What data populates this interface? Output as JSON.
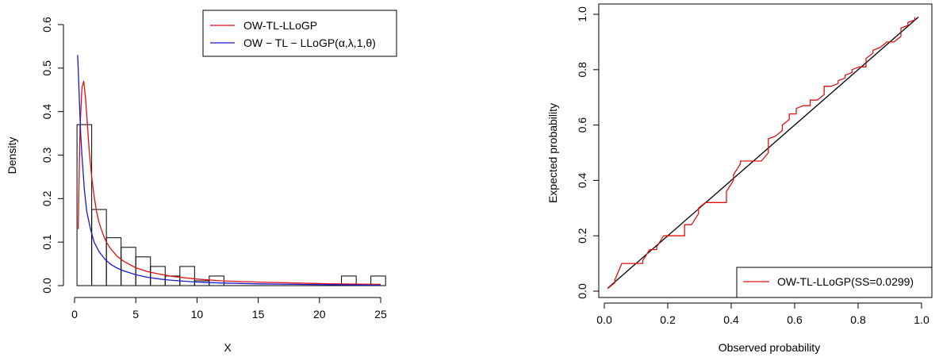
{
  "chart_data": [
    {
      "type": "histogram",
      "xlabel": "X",
      "ylabel": "Density",
      "xlim": [
        0,
        25
      ],
      "ylim": [
        0,
        0.6
      ],
      "xticks": [
        "0",
        "5",
        "10",
        "15",
        "20",
        "25"
      ],
      "yticks": [
        "0.0",
        "0.1",
        "0.2",
        "0.3",
        "0.4",
        "0.5",
        "0.6"
      ],
      "grid": false,
      "legend_position": "top-right",
      "histogram": {
        "bin_width": 1.2,
        "bins": [
          {
            "x0": 0.2,
            "x1": 1.4,
            "density": 0.37
          },
          {
            "x0": 1.4,
            "x1": 2.6,
            "density": 0.175
          },
          {
            "x0": 2.6,
            "x1": 3.8,
            "density": 0.11
          },
          {
            "x0": 3.8,
            "x1": 5.0,
            "density": 0.088
          },
          {
            "x0": 5.0,
            "x1": 6.2,
            "density": 0.066
          },
          {
            "x0": 6.2,
            "x1": 7.4,
            "density": 0.044
          },
          {
            "x0": 7.4,
            "x1": 8.6,
            "density": 0.022
          },
          {
            "x0": 8.6,
            "x1": 9.8,
            "density": 0.044
          },
          {
            "x0": 9.8,
            "x1": 11.0,
            "density": 0.011
          },
          {
            "x0": 11.0,
            "x1": 12.2,
            "density": 0.022
          },
          {
            "x0": 12.2,
            "x1": 13.4,
            "density": 0.0
          },
          {
            "x0": 13.4,
            "x1": 14.6,
            "density": 0.0
          },
          {
            "x0": 14.6,
            "x1": 15.8,
            "density": 0.0
          },
          {
            "x0": 15.8,
            "x1": 17.0,
            "density": 0.0
          },
          {
            "x0": 17.0,
            "x1": 18.2,
            "density": 0.0
          },
          {
            "x0": 18.2,
            "x1": 19.4,
            "density": 0.0
          },
          {
            "x0": 19.4,
            "x1": 20.6,
            "density": 0.0
          },
          {
            "x0": 20.6,
            "x1": 21.8,
            "density": 0.0
          },
          {
            "x0": 21.8,
            "x1": 23.0,
            "density": 0.022
          },
          {
            "x0": 23.0,
            "x1": 24.2,
            "density": 0.0
          },
          {
            "x0": 24.2,
            "x1": 25.4,
            "density": 0.022
          }
        ]
      },
      "series": [
        {
          "name": "OW-TL-LLoGP",
          "color": "#e01010",
          "x": [
            0.3,
            0.45,
            0.6,
            0.75,
            0.9,
            1.05,
            1.2,
            1.4,
            1.6,
            1.8,
            2.0,
            2.3,
            2.6,
            3.0,
            3.5,
            4.0,
            5.0,
            6.0,
            7.0,
            8.0,
            10.0,
            12.0,
            15.0,
            18.0,
            21.0,
            25.0
          ],
          "y": [
            0.13,
            0.36,
            0.455,
            0.47,
            0.43,
            0.37,
            0.31,
            0.25,
            0.205,
            0.17,
            0.145,
            0.12,
            0.1,
            0.083,
            0.067,
            0.056,
            0.041,
            0.032,
            0.026,
            0.021,
            0.015,
            0.011,
            0.008,
            0.006,
            0.004,
            0.003
          ]
        },
        {
          "name": "OW − TL − LLoGP(α,λ,1,θ)",
          "color": "#1a1ad0",
          "x": [
            0.25,
            0.3,
            0.4,
            0.5,
            0.6,
            0.8,
            1.0,
            1.3,
            1.6,
            2.0,
            2.5,
            3.0,
            3.5,
            4.0,
            5.0,
            6.0,
            7.0,
            8.0,
            10.0,
            12.0,
            15.0,
            18.0,
            21.0,
            25.0
          ],
          "y": [
            0.53,
            0.5,
            0.42,
            0.35,
            0.3,
            0.22,
            0.17,
            0.13,
            0.1,
            0.078,
            0.06,
            0.048,
            0.04,
            0.034,
            0.025,
            0.019,
            0.015,
            0.012,
            0.008,
            0.006,
            0.004,
            0.003,
            0.002,
            0.001
          ]
        }
      ]
    },
    {
      "type": "line",
      "xlabel": "Observed probability",
      "ylabel": "Expected probability",
      "xlim": [
        0,
        1
      ],
      "ylim": [
        0,
        1
      ],
      "xticks": [
        "0.0",
        "0.2",
        "0.4",
        "0.6",
        "0.8",
        "1.0"
      ],
      "yticks": [
        "0.0",
        "0.2",
        "0.4",
        "0.6",
        "0.8",
        "1.0"
      ],
      "grid": false,
      "legend_position": "bottom-right",
      "series": [
        {
          "name": "OW-TL-LLoGP(SS=0.0299)",
          "color": "#e01010",
          "x": [
            0.011,
            0.033,
            0.033,
            0.055,
            0.055,
            0.077,
            0.077,
            0.099,
            0.099,
            0.121,
            0.121,
            0.143,
            0.143,
            0.165,
            0.165,
            0.187,
            0.187,
            0.209,
            0.209,
            0.231,
            0.231,
            0.253,
            0.253,
            0.275,
            0.275,
            0.297,
            0.297,
            0.319,
            0.319,
            0.341,
            0.341,
            0.363,
            0.363,
            0.385,
            0.385,
            0.407,
            0.407,
            0.429,
            0.429,
            0.451,
            0.451,
            0.473,
            0.473,
            0.495,
            0.495,
            0.517,
            0.517,
            0.539,
            0.539,
            0.561,
            0.561,
            0.583,
            0.583,
            0.605,
            0.605,
            0.627,
            0.627,
            0.649,
            0.649,
            0.671,
            0.671,
            0.693,
            0.693,
            0.715,
            0.715,
            0.737,
            0.737,
            0.759,
            0.759,
            0.781,
            0.781,
            0.803,
            0.803,
            0.825,
            0.825,
            0.847,
            0.847,
            0.869,
            0.869,
            0.891,
            0.891,
            0.913,
            0.913,
            0.935,
            0.935,
            0.957,
            0.957,
            0.979,
            0.979
          ],
          "y": [
            0.01,
            0.03,
            0.04,
            0.1,
            0.1,
            0.1,
            0.1,
            0.1,
            0.1,
            0.1,
            0.11,
            0.15,
            0.15,
            0.15,
            0.16,
            0.2,
            0.2,
            0.2,
            0.2,
            0.2,
            0.2,
            0.2,
            0.24,
            0.24,
            0.24,
            0.28,
            0.3,
            0.32,
            0.32,
            0.32,
            0.32,
            0.32,
            0.32,
            0.32,
            0.36,
            0.4,
            0.42,
            0.46,
            0.47,
            0.47,
            0.47,
            0.47,
            0.47,
            0.47,
            0.47,
            0.5,
            0.55,
            0.56,
            0.56,
            0.58,
            0.6,
            0.62,
            0.64,
            0.64,
            0.66,
            0.67,
            0.67,
            0.67,
            0.69,
            0.69,
            0.69,
            0.71,
            0.74,
            0.74,
            0.74,
            0.75,
            0.76,
            0.77,
            0.78,
            0.79,
            0.8,
            0.81,
            0.81,
            0.81,
            0.84,
            0.86,
            0.87,
            0.88,
            0.88,
            0.9,
            0.9,
            0.9,
            0.9,
            0.92,
            0.95,
            0.96,
            0.97,
            0.98,
            0.99
          ]
        },
        {
          "color": "#000000",
          "x": [
            0.01,
            0.99
          ],
          "y": [
            0.01,
            0.99
          ]
        }
      ]
    }
  ]
}
